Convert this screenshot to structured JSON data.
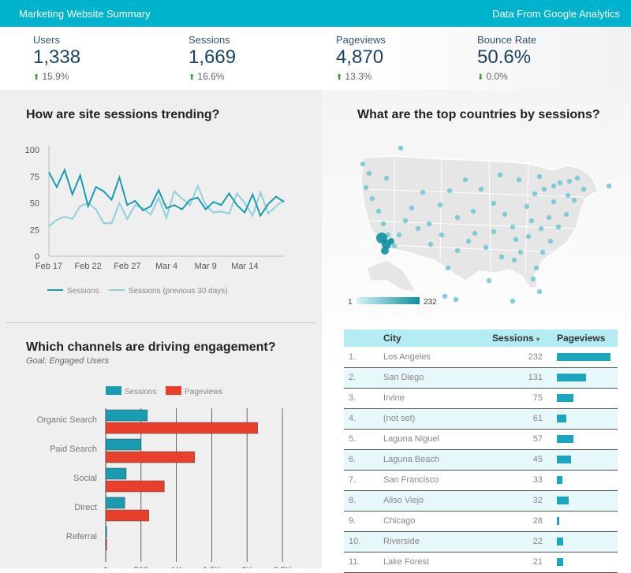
{
  "header": {
    "title": "Marketing Website Summary",
    "source": "Data From Google Analytics"
  },
  "kpis": [
    {
      "label": "Users",
      "value": "1,338",
      "change": "15.9%",
      "direction": "up"
    },
    {
      "label": "Sessions",
      "value": "1,669",
      "change": "16.6%",
      "direction": "up"
    },
    {
      "label": "Pageviews",
      "value": "4,870",
      "change": "13.3%",
      "direction": "up"
    },
    {
      "label": "Bounce Rate",
      "value": "50.6%",
      "change": "0.0%",
      "direction": "down"
    }
  ],
  "trend": {
    "title": "How are site sessions trending?",
    "legend": [
      "Sessions",
      "Sessions (previous 30 days)"
    ]
  },
  "channels": {
    "title": "Which channels are driving engagement?",
    "subtitle": "Goal: Engaged Users",
    "legend": [
      "Sessions",
      "Pageviews"
    ]
  },
  "countries": {
    "title": "What are the top countries by sessions?",
    "scale_min": "1",
    "scale_max": "232"
  },
  "table": {
    "headers": {
      "city": "City",
      "sessions": "Sessions",
      "pageviews": "Pageviews"
    },
    "rows": [
      {
        "rank": "1.",
        "city": "Los Angeles",
        "sessions": "232",
        "pageviews": 1.0
      },
      {
        "rank": "2.",
        "city": "San Diego",
        "sessions": "131",
        "pageviews": 0.55
      },
      {
        "rank": "3.",
        "city": "Irvine",
        "sessions": "75",
        "pageviews": 0.31
      },
      {
        "rank": "4.",
        "city": "(not set)",
        "sessions": "61",
        "pageviews": 0.17
      },
      {
        "rank": "5.",
        "city": "Laguna Niguel",
        "sessions": "57",
        "pageviews": 0.31
      },
      {
        "rank": "6.",
        "city": "Laguna Beach",
        "sessions": "45",
        "pageviews": 0.27
      },
      {
        "rank": "7.",
        "city": "San Francisco",
        "sessions": "33",
        "pageviews": 0.1
      },
      {
        "rank": "8.",
        "city": "Aliso Viejo",
        "sessions": "32",
        "pageviews": 0.22
      },
      {
        "rank": "9.",
        "city": "Chicago",
        "sessions": "28",
        "pageviews": 0.05
      },
      {
        "rank": "10.",
        "city": "Riverside",
        "sessions": "22",
        "pageviews": 0.12
      },
      {
        "rank": "11.",
        "city": "Lake Forest",
        "sessions": "21",
        "pageviews": 0.12
      }
    ]
  },
  "colors": {
    "accent": "#00b3cc",
    "sessions": "#1a9cb0",
    "previous": "#8fd0dc",
    "pageviews": "#e8402c"
  },
  "chart_data": [
    {
      "type": "line",
      "title": "How are site sessions trending?",
      "x_ticks": [
        "Feb 17",
        "Feb 22",
        "Feb 27",
        "Mar 4",
        "Mar 9",
        "Mar 14"
      ],
      "y_ticks": [
        "0",
        "25",
        "50",
        "75",
        "100"
      ],
      "ylim": [
        0,
        100
      ],
      "series": [
        {
          "name": "Sessions",
          "values": [
            79,
            65,
            81,
            58,
            76,
            47,
            65,
            61,
            53,
            74,
            48,
            52,
            43,
            47,
            62,
            45,
            48,
            44,
            53,
            55,
            44,
            51,
            48,
            59,
            48,
            41,
            58,
            38,
            49,
            56,
            51
          ]
        },
        {
          "name": "Sessions (previous 30 days)",
          "values": [
            28,
            34,
            37,
            35,
            47,
            50,
            44,
            31,
            31,
            50,
            35,
            48,
            45,
            39,
            55,
            36,
            61,
            54,
            48,
            66,
            48,
            41,
            42,
            40,
            59,
            50,
            38,
            60,
            40,
            47,
            53
          ]
        }
      ]
    },
    {
      "type": "bar",
      "title": "Which channels are driving engagement?",
      "categories": [
        "Organic Search",
        "Paid Search",
        "Social",
        "Direct",
        "Referral"
      ],
      "x_ticks": [
        "0",
        "500",
        "1K",
        "1.5K",
        "2K",
        "2.5K"
      ],
      "xlim": [
        0,
        2500
      ],
      "series": [
        {
          "name": "Sessions",
          "values": [
            590,
            500,
            290,
            270,
            15
          ]
        },
        {
          "name": "Pageviews",
          "values": [
            2150,
            1260,
            830,
            610,
            15
          ]
        }
      ]
    }
  ]
}
